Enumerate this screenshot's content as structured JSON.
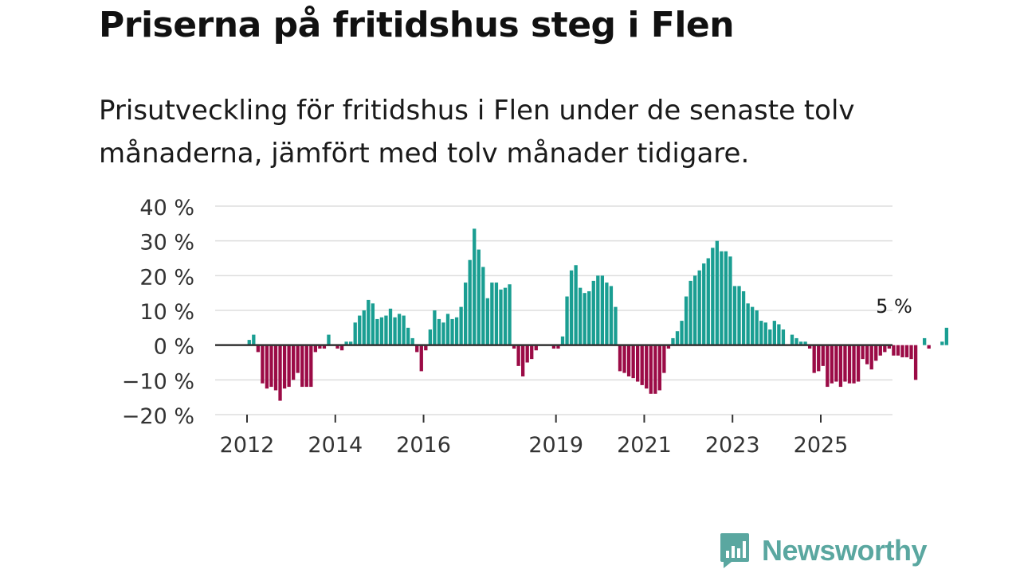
{
  "title": "Priserna på fritidshus steg i Flen",
  "subtitle": "Prisutveckling för fritidshus i Flen under de senaste tolv månaderna, jämfört med tolv månader tidigare.",
  "colors": {
    "positive": "#1a9e92",
    "negative": "#9b0b46",
    "grid": "#dddddd",
    "zero_line": "#333333",
    "brand": "#5aa7a0"
  },
  "brand": {
    "name": "Newsworthy",
    "icon": "bar-chart-speech-bubble-icon"
  },
  "chart_data": {
    "type": "bar",
    "title": "Priserna på fritidshus steg i Flen",
    "xlabel": "",
    "ylabel": "",
    "ylim": [
      -20,
      40
    ],
    "yticks": [
      -20,
      -10,
      0,
      10,
      20,
      30,
      40
    ],
    "ytick_labels": [
      "−20 %",
      "−10 %",
      "0 %",
      "10 %",
      "20 %",
      "30 %",
      "40 %"
    ],
    "x_start": 2012,
    "x_end": 2026.75,
    "xticks": [
      2012,
      2014,
      2016,
      2019,
      2021,
      2023,
      2025
    ],
    "xtick_labels": [
      "2012",
      "2014",
      "2016",
      "2019",
      "2021",
      "2023",
      "2025"
    ],
    "grid": true,
    "annotation": {
      "text": "5 %",
      "year": 2026.3,
      "value": 5
    },
    "series": [
      {
        "name": "Prisutveckling",
        "start_year": 2012,
        "step": 0.1,
        "values": [
          1.5,
          3,
          -2,
          -11,
          -12.5,
          -12,
          -13,
          -16,
          -12.5,
          -12,
          -10,
          -8,
          -12,
          -12,
          -12,
          -2,
          -1,
          -1,
          3,
          0,
          -1,
          -1.5,
          1,
          1,
          6.5,
          8.5,
          10,
          13,
          12,
          7.5,
          8,
          8.5,
          10.5,
          8,
          9,
          8.5,
          5,
          2,
          -2,
          -7.5,
          -1.5,
          4.5,
          10,
          7.5,
          6.5,
          9,
          7.5,
          8,
          11,
          18,
          24.5,
          33.5,
          27.5,
          22.5,
          13.5,
          18,
          18,
          16,
          16.5,
          17.5,
          -1,
          -6,
          -9,
          -5,
          -4,
          -1.5,
          0,
          0,
          0,
          -1,
          -1,
          2.5,
          14,
          21.5,
          23,
          16.5,
          15,
          15.5,
          18.5,
          20,
          20,
          18,
          17,
          11,
          -7.5,
          -8,
          -9,
          -9.5,
          -10.5,
          -11.5,
          -12.5,
          -14,
          -14,
          -13,
          -8,
          -1,
          2,
          4,
          7,
          14,
          18.5,
          20,
          21.5,
          23.5,
          25,
          28,
          30,
          27,
          27,
          25.5,
          17,
          17,
          15.5,
          12,
          11,
          10,
          7,
          6.5,
          4.5,
          7,
          6,
          4.5,
          0,
          3,
          2,
          1,
          1,
          -1,
          -8,
          -7.5,
          -6,
          -12,
          -11,
          -10.5,
          -12,
          -10.5,
          -11,
          -11,
          -10.5,
          -4,
          -5.5,
          -7,
          -4.5,
          -3,
          -2,
          -1,
          -3,
          -3,
          -3.5,
          -3.5,
          -4,
          -10,
          0,
          2,
          -1,
          0,
          0,
          1,
          5
        ]
      }
    ]
  }
}
